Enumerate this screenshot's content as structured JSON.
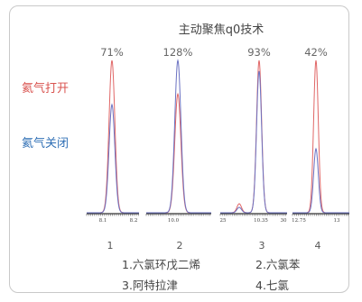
{
  "chart_data": {
    "type": "line",
    "title": "主动聚焦q0技术",
    "series": [
      {
        "name": "氦气打开",
        "color": "#e06666"
      },
      {
        "name": "氦气关闭",
        "color": "#6b72c2"
      }
    ],
    "panels": [
      {
        "number": "1",
        "percent": "71%",
        "ticks": [
          "8.1",
          "8.2"
        ],
        "on": 1.0,
        "off": 0.71
      },
      {
        "number": "2",
        "percent": "128%",
        "ticks": [
          "10.0"
        ],
        "on": 0.78,
        "off": 1.0
      },
      {
        "number": "3",
        "percent": "93%",
        "ticks": [
          "25",
          "10.35",
          "30"
        ],
        "on": 1.0,
        "off": 0.93
      },
      {
        "number": "4",
        "percent": "42%",
        "ticks": [
          "12.75",
          "13"
        ],
        "on": 1.0,
        "off": 0.42
      }
    ],
    "captions": [
      "1.六氯环戊二烯",
      "2.六氯苯",
      "3.阿特拉津",
      "4.七氯"
    ]
  }
}
